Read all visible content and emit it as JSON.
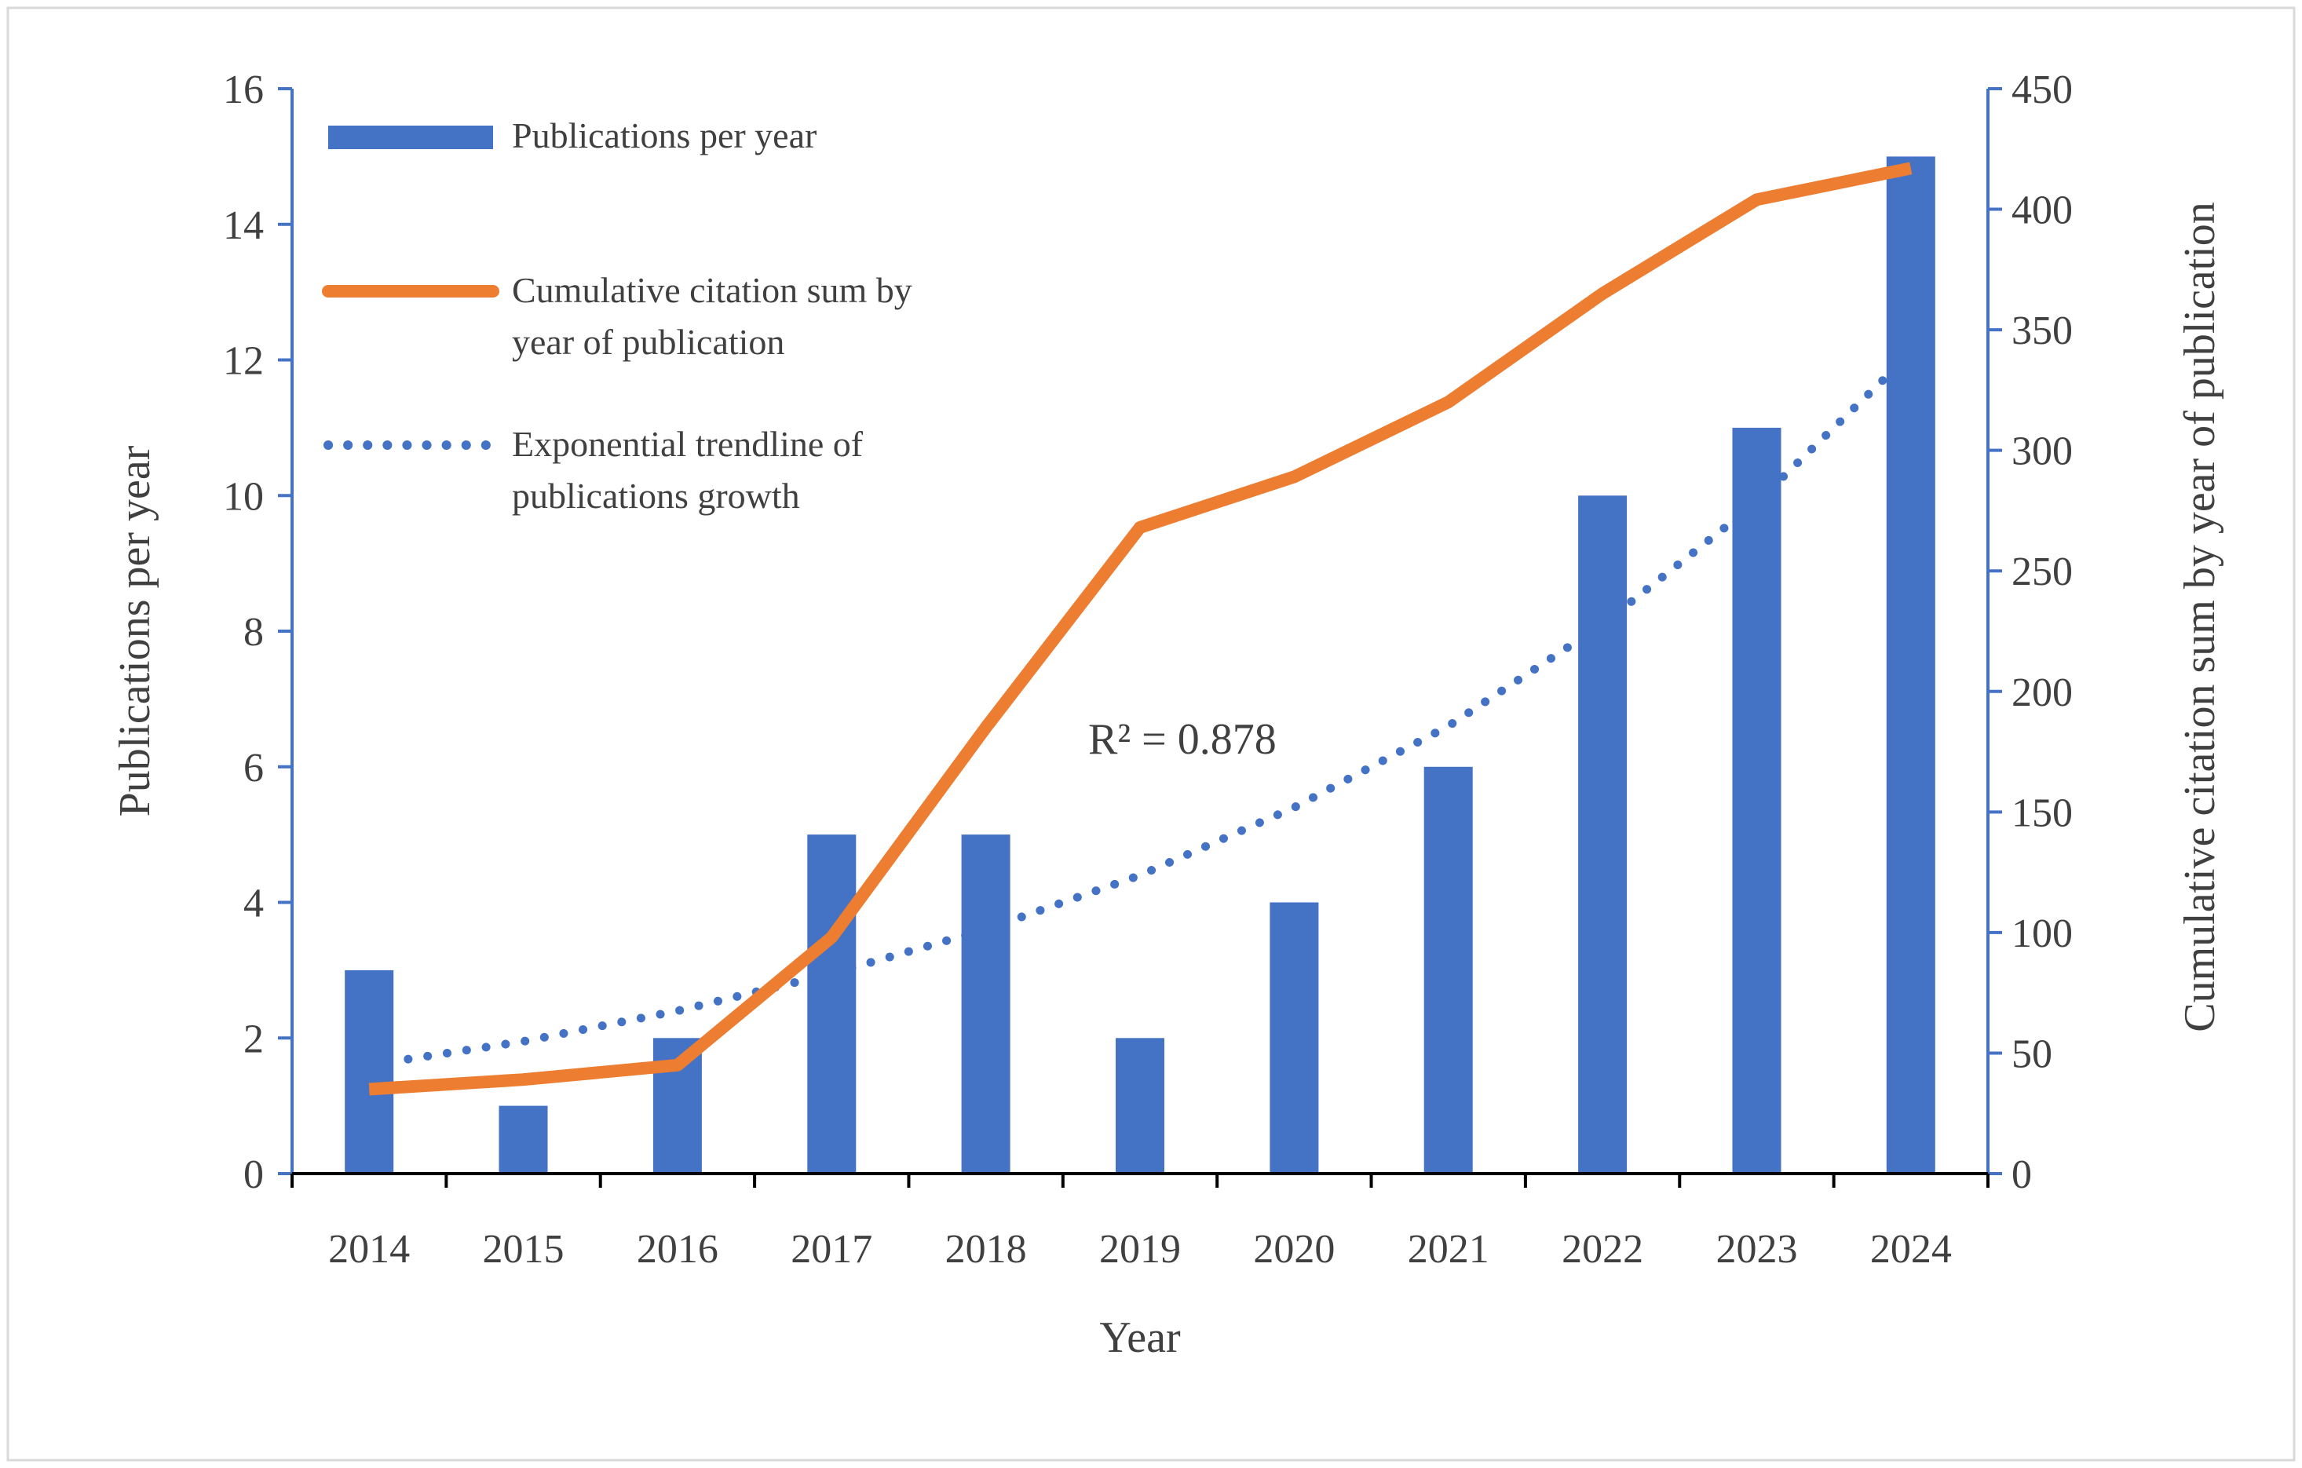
{
  "chart_data": {
    "type": "bar",
    "categories": [
      "2014",
      "2015",
      "2016",
      "2017",
      "2018",
      "2019",
      "2020",
      "2021",
      "2022",
      "2023",
      "2024"
    ],
    "series": [
      {
        "name": "Publications per year",
        "type": "bar",
        "axis": "left",
        "color": "#4472c4",
        "values": [
          3,
          1,
          2,
          5,
          5,
          2,
          4,
          6,
          10,
          11,
          15
        ]
      },
      {
        "name": "Cumulative citation sum by year of publication",
        "type": "line",
        "axis": "right",
        "color": "#ed7d31",
        "values": [
          35,
          39,
          45,
          98,
          185,
          268,
          289,
          320,
          365,
          404,
          417
        ]
      },
      {
        "name": "Exponential trendline of publications growth",
        "type": "line",
        "style": "dotted",
        "axis": "left",
        "color": "#4472c4",
        "values": [
          1.6,
          1.95,
          2.4,
          2.95,
          3.6,
          4.4,
          5.4,
          6.6,
          8.1,
          9.9,
          12.1
        ]
      }
    ],
    "xlabel": "Year",
    "ylabel": "Publications per year",
    "y2label": "Cumulative citation sum by year of publication",
    "ylim": [
      0,
      16
    ],
    "y_ticks": [
      "0",
      "2",
      "4",
      "6",
      "8",
      "10",
      "12",
      "14",
      "16"
    ],
    "y2lim": [
      0,
      450
    ],
    "y2_ticks": [
      "0",
      "50",
      "100",
      "150",
      "200",
      "250",
      "300",
      "350",
      "400",
      "450"
    ],
    "annotation": "R² = 0.878",
    "legend": {
      "placement": "top-left",
      "items": [
        {
          "lines": [
            "Publications per year"
          ]
        },
        {
          "lines": [
            "Cumulative citation sum by",
            "year of publication"
          ]
        },
        {
          "lines": [
            "Exponential trendline of",
            "publications growth"
          ]
        }
      ]
    },
    "grid": false
  }
}
